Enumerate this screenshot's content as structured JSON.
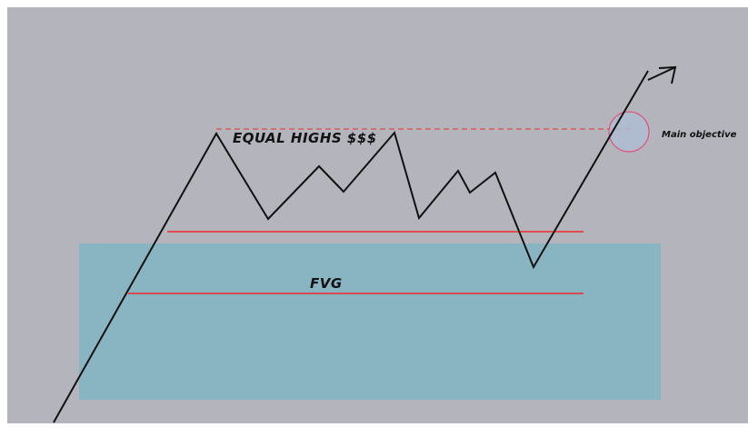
{
  "labels": {
    "equal_highs": "EQUAL HIGHS $$$",
    "fvg": "FVG",
    "main_objective": "Main objective"
  },
  "colors": {
    "background": "#b3b4bc",
    "fvg_zone": "#89b5c3",
    "price_line": "#111111",
    "level_line": "#ee2a2a",
    "equal_highs_line": "#e04a4a",
    "objective_circle": "#e0557a",
    "objective_fill": "#aebcd2"
  }
}
